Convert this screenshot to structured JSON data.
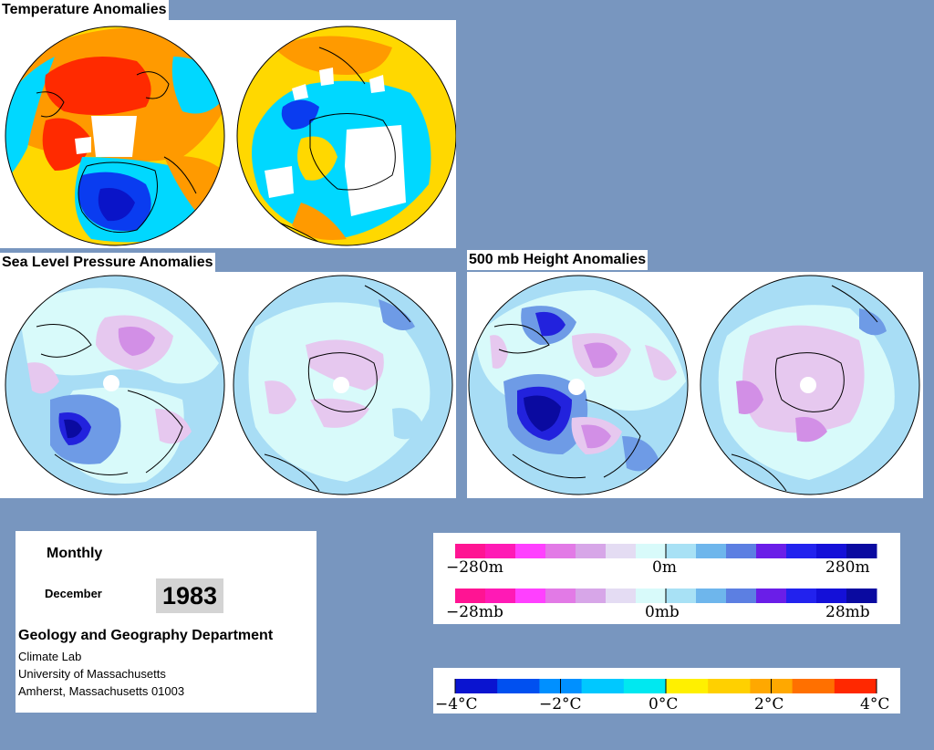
{
  "panels": {
    "temperature": {
      "title": "Temperature Anomalies"
    },
    "slp": {
      "title": "Sea Level Pressure Anomalies"
    },
    "height500": {
      "title": "500 mb Height Anomalies"
    }
  },
  "info": {
    "frequency": "Monthly",
    "month": "December",
    "year": "1983",
    "department": "Geology and Geography Department",
    "lab": "Climate Lab",
    "university": "University of Massachusetts",
    "address": "Amherst, Massachusetts 01003"
  },
  "legends": {
    "height": {
      "labels": [
        "−280m",
        "0m",
        "280m"
      ],
      "colors": [
        "#ff1493",
        "#ff1ab5",
        "#ff40ff",
        "#e27ae6",
        "#d7a6e8",
        "#e4dcf3",
        "#d8fafa",
        "#a8e1f5",
        "#6eb6ec",
        "#5c7fe2",
        "#6a1ee8",
        "#2222ee",
        "#1410d8",
        "#0a0aa0"
      ]
    },
    "pressure": {
      "labels": [
        "−28mb",
        "0mb",
        "28mb"
      ],
      "colors": [
        "#ff1493",
        "#ff1ab5",
        "#ff40ff",
        "#e27ae6",
        "#d7a6e8",
        "#e4dcf3",
        "#d8fafa",
        "#a8e1f5",
        "#6eb6ec",
        "#5c7fe2",
        "#6a1ee8",
        "#2222ee",
        "#1410d8",
        "#0a0aa0"
      ]
    },
    "temperature": {
      "labels": [
        "−4°C",
        "−2°C",
        "0°C",
        "2°C",
        "4°C"
      ],
      "colors": [
        "#0a14d0",
        "#0050f0",
        "#0090ff",
        "#00c8ff",
        "#00e8f0",
        "#fff000",
        "#ffd000",
        "#ffa800",
        "#ff7000",
        "#ff2800"
      ]
    }
  },
  "map_colors": {
    "temp_warm": "#ff2a00",
    "temp_orange": "#ff9a00",
    "temp_yellow": "#ffd800",
    "temp_cyan": "#00d8ff",
    "temp_blue": "#0a3cf0",
    "temp_dark_blue": "#0a14c8",
    "anom_base": "#a8ddf5",
    "anom_light": "#d8fafa",
    "anom_lilac": "#e6c8ef",
    "anom_purple": "#d28fe6",
    "anom_blue": "#6e9be6",
    "anom_dark_blue": "#2222dd",
    "anom_navy": "#0a0aa0"
  }
}
